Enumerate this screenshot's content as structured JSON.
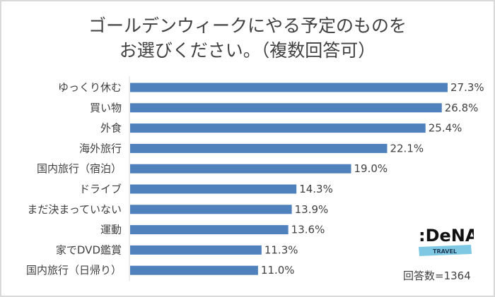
{
  "chart_data": {
    "type": "bar",
    "orientation": "horizontal",
    "title_line1": "ゴールデンウィークにやる予定のものを",
    "title_line2": "お選びください。（複数回答可）",
    "categories": [
      "ゆっくり休む",
      "買い物",
      "外食",
      "海外旅行",
      "国内旅行（宿泊）",
      "ドライブ",
      "まだ決まっていない",
      "運動",
      "家でDVD鑑賞",
      "国内旅行（日帰り）"
    ],
    "values": [
      27.3,
      26.8,
      25.4,
      22.1,
      19.0,
      14.3,
      13.9,
      13.6,
      11.3,
      11.0
    ],
    "value_labels": [
      "27.3%",
      "26.8%",
      "25.4%",
      "22.1%",
      "19.0%",
      "14.3%",
      "13.9%",
      "13.6%",
      "11.3%",
      "11.0%"
    ],
    "xlim": [
      0,
      30
    ],
    "grid": false,
    "bar_color": "#4f81bd"
  },
  "note": "回答数=1364",
  "logo": {
    "text": ":DeNA",
    "subtext": "TRAVEL",
    "band_color": "#7ec8e3"
  }
}
